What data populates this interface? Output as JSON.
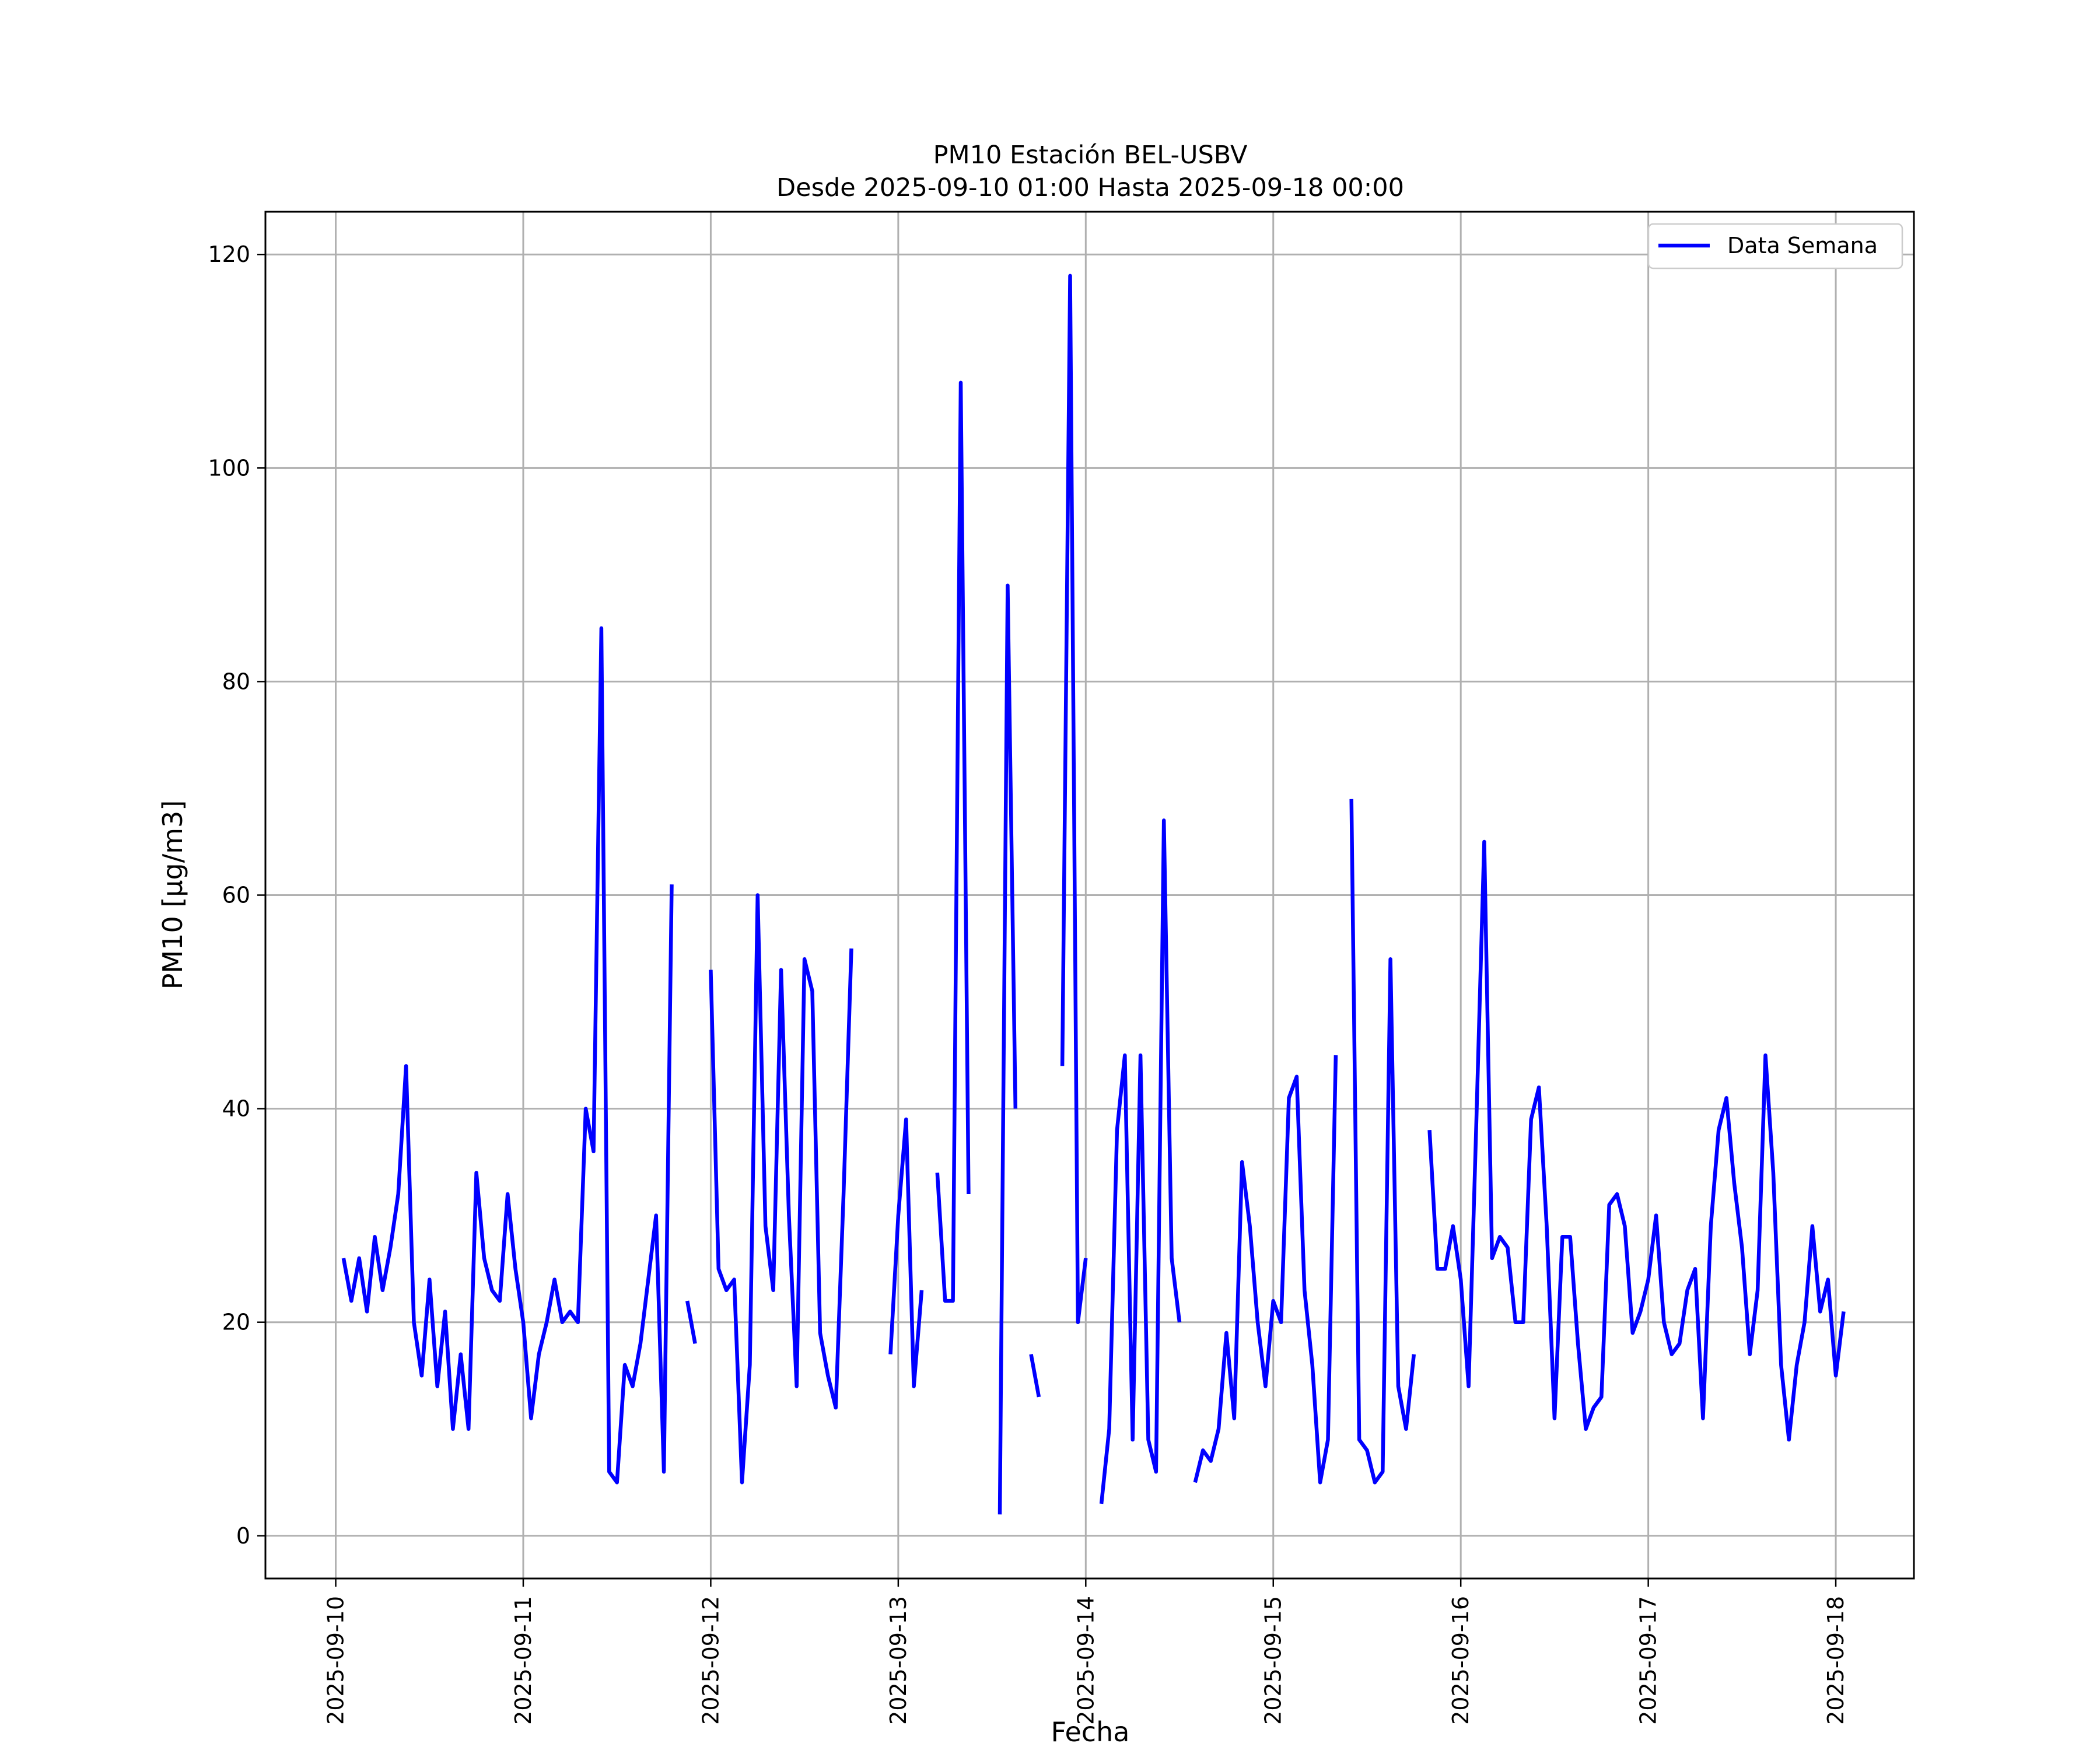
{
  "chart_data": {
    "type": "line",
    "title": "PM10 Estación BEL-USBV",
    "subtitle": "Desde 2025-09-10 01:00 Hasta 2025-09-18 00:00",
    "xlabel": "Fecha",
    "ylabel": "PM10 [μg/m3]",
    "ylim": [
      -4,
      124
    ],
    "xlim": [
      "2025-09-09 15:00",
      "2025-09-18 10:00"
    ],
    "yticks": [
      0,
      20,
      40,
      60,
      80,
      100,
      120
    ],
    "xticks": [
      "2025-09-10",
      "2025-09-11",
      "2025-09-12",
      "2025-09-13",
      "2025-09-14",
      "2025-09-15",
      "2025-09-16",
      "2025-09-17",
      "2025-09-18"
    ],
    "grid": true,
    "legend_position": "top-right",
    "x_start": "2025-09-10 01:00",
    "x_step": "1h",
    "series": [
      {
        "name": "Data Semana",
        "color": "#0000ff",
        "values": [
          26,
          22,
          26,
          21,
          28,
          23,
          27,
          32,
          44,
          20,
          15,
          24,
          14,
          21,
          10,
          17,
          10,
          34,
          26,
          23,
          22,
          32,
          25,
          20,
          11,
          17,
          20,
          24,
          20,
          21,
          20,
          40,
          36,
          85,
          6,
          5,
          16,
          14,
          18,
          24,
          30,
          6,
          61,
          null,
          22,
          18,
          null,
          53,
          25,
          23,
          24,
          5,
          16,
          60,
          29,
          23,
          53,
          30,
          14,
          54,
          51,
          19,
          15,
          12,
          32,
          55,
          null,
          null,
          null,
          null,
          17,
          30,
          39,
          14,
          23,
          null,
          34,
          22,
          22,
          108,
          32,
          null,
          null,
          null,
          2,
          89,
          40,
          null,
          17,
          13,
          null,
          null,
          44,
          118,
          20,
          26,
          null,
          3,
          10,
          38,
          45,
          9,
          45,
          9,
          6,
          67,
          26,
          20,
          null,
          5,
          8,
          7,
          10,
          19,
          11,
          35,
          29,
          20,
          14,
          22,
          20,
          41,
          43,
          23,
          16,
          5,
          9,
          45,
          null,
          69,
          9,
          8,
          5,
          6,
          54,
          14,
          10,
          17,
          null,
          38,
          25,
          25,
          29,
          24,
          14,
          39,
          65,
          26,
          28,
          27,
          20,
          20,
          39,
          42,
          29,
          11,
          28,
          28,
          18,
          10,
          12,
          13,
          31,
          32,
          29,
          19,
          21,
          24,
          30,
          20,
          17,
          18,
          23,
          25,
          11,
          29,
          38,
          41,
          33,
          27,
          17,
          23,
          45,
          34,
          16,
          9,
          16,
          20,
          29,
          21,
          24,
          15,
          21
        ]
      }
    ]
  }
}
